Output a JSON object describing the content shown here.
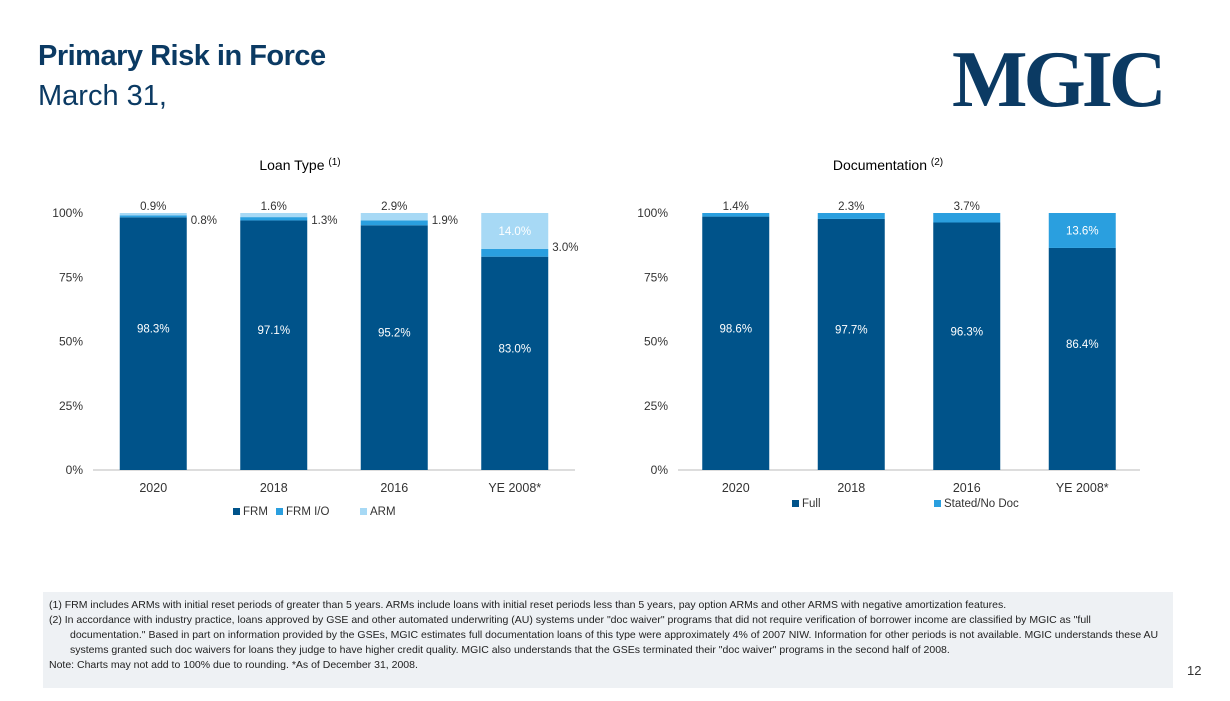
{
  "page": {
    "title": "Primary Risk in Force",
    "subtitle": "March 31,",
    "logo_text": "MGIC",
    "page_number": "12",
    "footnotes": [
      "(1)  FRM includes ARMs with initial reset periods of greater than 5 years. ARMs include loans with initial reset periods less than 5 years, pay option ARMs and other ARMS with negative amortization features.",
      "(2)  In accordance with industry practice, loans approved by GSE and other automated underwriting (AU) systems under \"doc waiver\" programs that did not require verification of borrower income are classified by MGIC as \"full documentation.\" Based in part on information provided by the GSEs, MGIC estimates full documentation loans of this type were approximately 4% of 2007 NIW. Information for other periods is not available. MGIC understands these AU systems granted such doc waivers for loans they judge to have higher credit quality. MGIC also understands that the GSEs terminated their \"doc waiver\" programs in the second half of 2008."
    ],
    "note": "Note: Charts may not add to 100% due to rounding. *As of December 31, 2008."
  },
  "chart_data": [
    {
      "type": "bar",
      "stacked": true,
      "title": "Loan Type",
      "title_sup": "(1)",
      "categories": [
        "2020",
        "2018",
        "2016",
        "YE 2008*"
      ],
      "yticks": [
        "0%",
        "25%",
        "50%",
        "75%",
        "100%"
      ],
      "ylim": [
        0,
        100
      ],
      "legend_position": "bottom",
      "series": [
        {
          "name": "FRM",
          "values": [
            98.3,
            97.1,
            95.2,
            83.0
          ],
          "labels": [
            "98.3%",
            "97.1%",
            "95.2%",
            "83.0%"
          ],
          "color": "#00538a"
        },
        {
          "name": "FRM I/O",
          "values": [
            0.8,
            1.3,
            1.9,
            3.0
          ],
          "labels": [
            "0.8%",
            "1.3%",
            "1.9%",
            "3.0%"
          ],
          "color": "#2a9fdf"
        },
        {
          "name": "ARM",
          "values": [
            0.9,
            1.6,
            2.9,
            14.0
          ],
          "labels": [
            "0.9%",
            "1.6%",
            "2.9%",
            "14.0%"
          ],
          "color": "#a7d9f5"
        }
      ]
    },
    {
      "type": "bar",
      "stacked": true,
      "title": "Documentation",
      "title_sup": "(2)",
      "categories": [
        "2020",
        "2018",
        "2016",
        "YE 2008*"
      ],
      "yticks": [
        "0%",
        "25%",
        "50%",
        "75%",
        "100%"
      ],
      "ylim": [
        0,
        100
      ],
      "legend_position": "bottom",
      "series": [
        {
          "name": "Full",
          "values": [
            98.6,
            97.7,
            96.3,
            86.4
          ],
          "labels": [
            "98.6%",
            "97.7%",
            "96.3%",
            "86.4%"
          ],
          "color": "#00538a"
        },
        {
          "name": "Stated/No Doc",
          "values": [
            1.4,
            2.3,
            3.7,
            13.6
          ],
          "labels": [
            "1.4%",
            "2.3%",
            "3.7%",
            "13.6%"
          ],
          "color": "#2a9fdf"
        }
      ]
    }
  ]
}
